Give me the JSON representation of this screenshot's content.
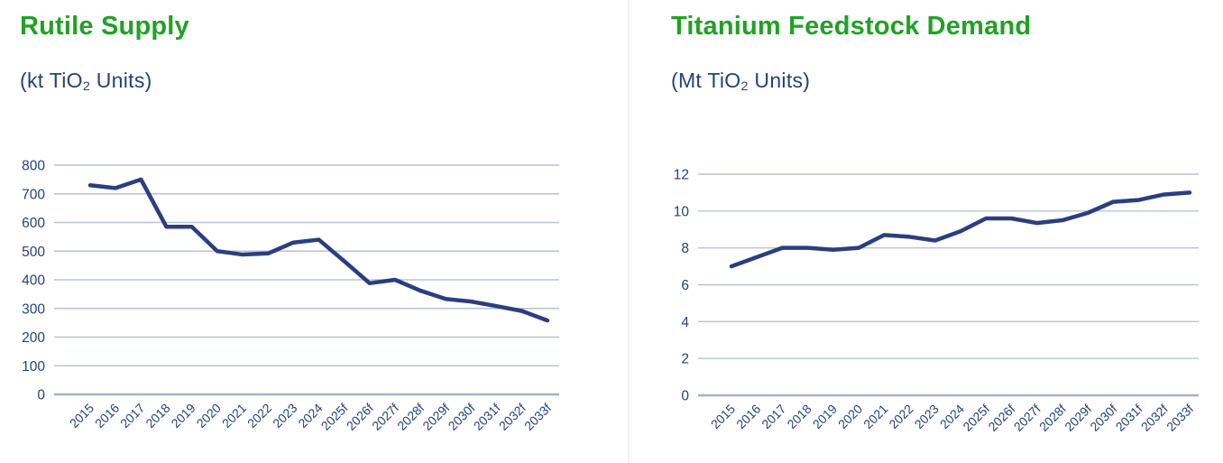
{
  "theme": {
    "background": "#ffffff",
    "title_green": "#1fa223",
    "navy_text": "#27407f",
    "line_navy": "#2c3e80",
    "grid_color": "#b9c2d8",
    "axis_zero_color": "#a5b1cc",
    "divider_color": "#ececea"
  },
  "panels": [
    {
      "title": "Rutile Supply",
      "subtitle_pre": "(kt TiO",
      "subtitle_sub": "2",
      "subtitle_post": " Units)"
    },
    {
      "title": "Titanium Feedstock Demand",
      "subtitle_pre": "(Mt TiO",
      "subtitle_sub": "2",
      "subtitle_post": " Units)"
    }
  ],
  "chart_data": [
    {
      "type": "line",
      "title": "Rutile Supply",
      "ylabel": "kt TiO2 Units",
      "xlabel": "",
      "legend": false,
      "grid": true,
      "ylim": [
        0,
        800
      ],
      "yticks": [
        0,
        100,
        200,
        300,
        400,
        500,
        600,
        700,
        800
      ],
      "categories": [
        "2015",
        "2016",
        "2017",
        "2018",
        "2019",
        "2020",
        "2021",
        "2022",
        "2023",
        "2024",
        "2025f",
        "2026f",
        "2027f",
        "2028f",
        "2029f",
        "2030f",
        "2031f",
        "2032f",
        "2033f"
      ],
      "values": [
        730,
        720,
        750,
        585,
        585,
        500,
        488,
        492,
        530,
        540,
        465,
        388,
        400,
        362,
        333,
        324,
        308,
        291,
        258
      ]
    },
    {
      "type": "line",
      "title": "Titanium Feedstock Demand",
      "ylabel": "Mt TiO2 Units",
      "xlabel": "",
      "legend": false,
      "grid": true,
      "ylim": [
        0,
        12
      ],
      "yticks": [
        0,
        2,
        4,
        6,
        8,
        10,
        12
      ],
      "categories": [
        "2015",
        "2016",
        "2017",
        "2018",
        "2019",
        "2020",
        "2021",
        "2022",
        "2023",
        "2024",
        "2025f",
        "2026f",
        "2027f",
        "2028f",
        "2029f",
        "2030f",
        "2031f",
        "2032f",
        "2033f"
      ],
      "values": [
        7.0,
        7.5,
        8.0,
        8.0,
        7.9,
        8.0,
        8.7,
        8.6,
        8.4,
        8.9,
        9.6,
        9.6,
        9.35,
        9.5,
        9.9,
        10.5,
        10.6,
        10.9,
        11.0
      ]
    }
  ]
}
